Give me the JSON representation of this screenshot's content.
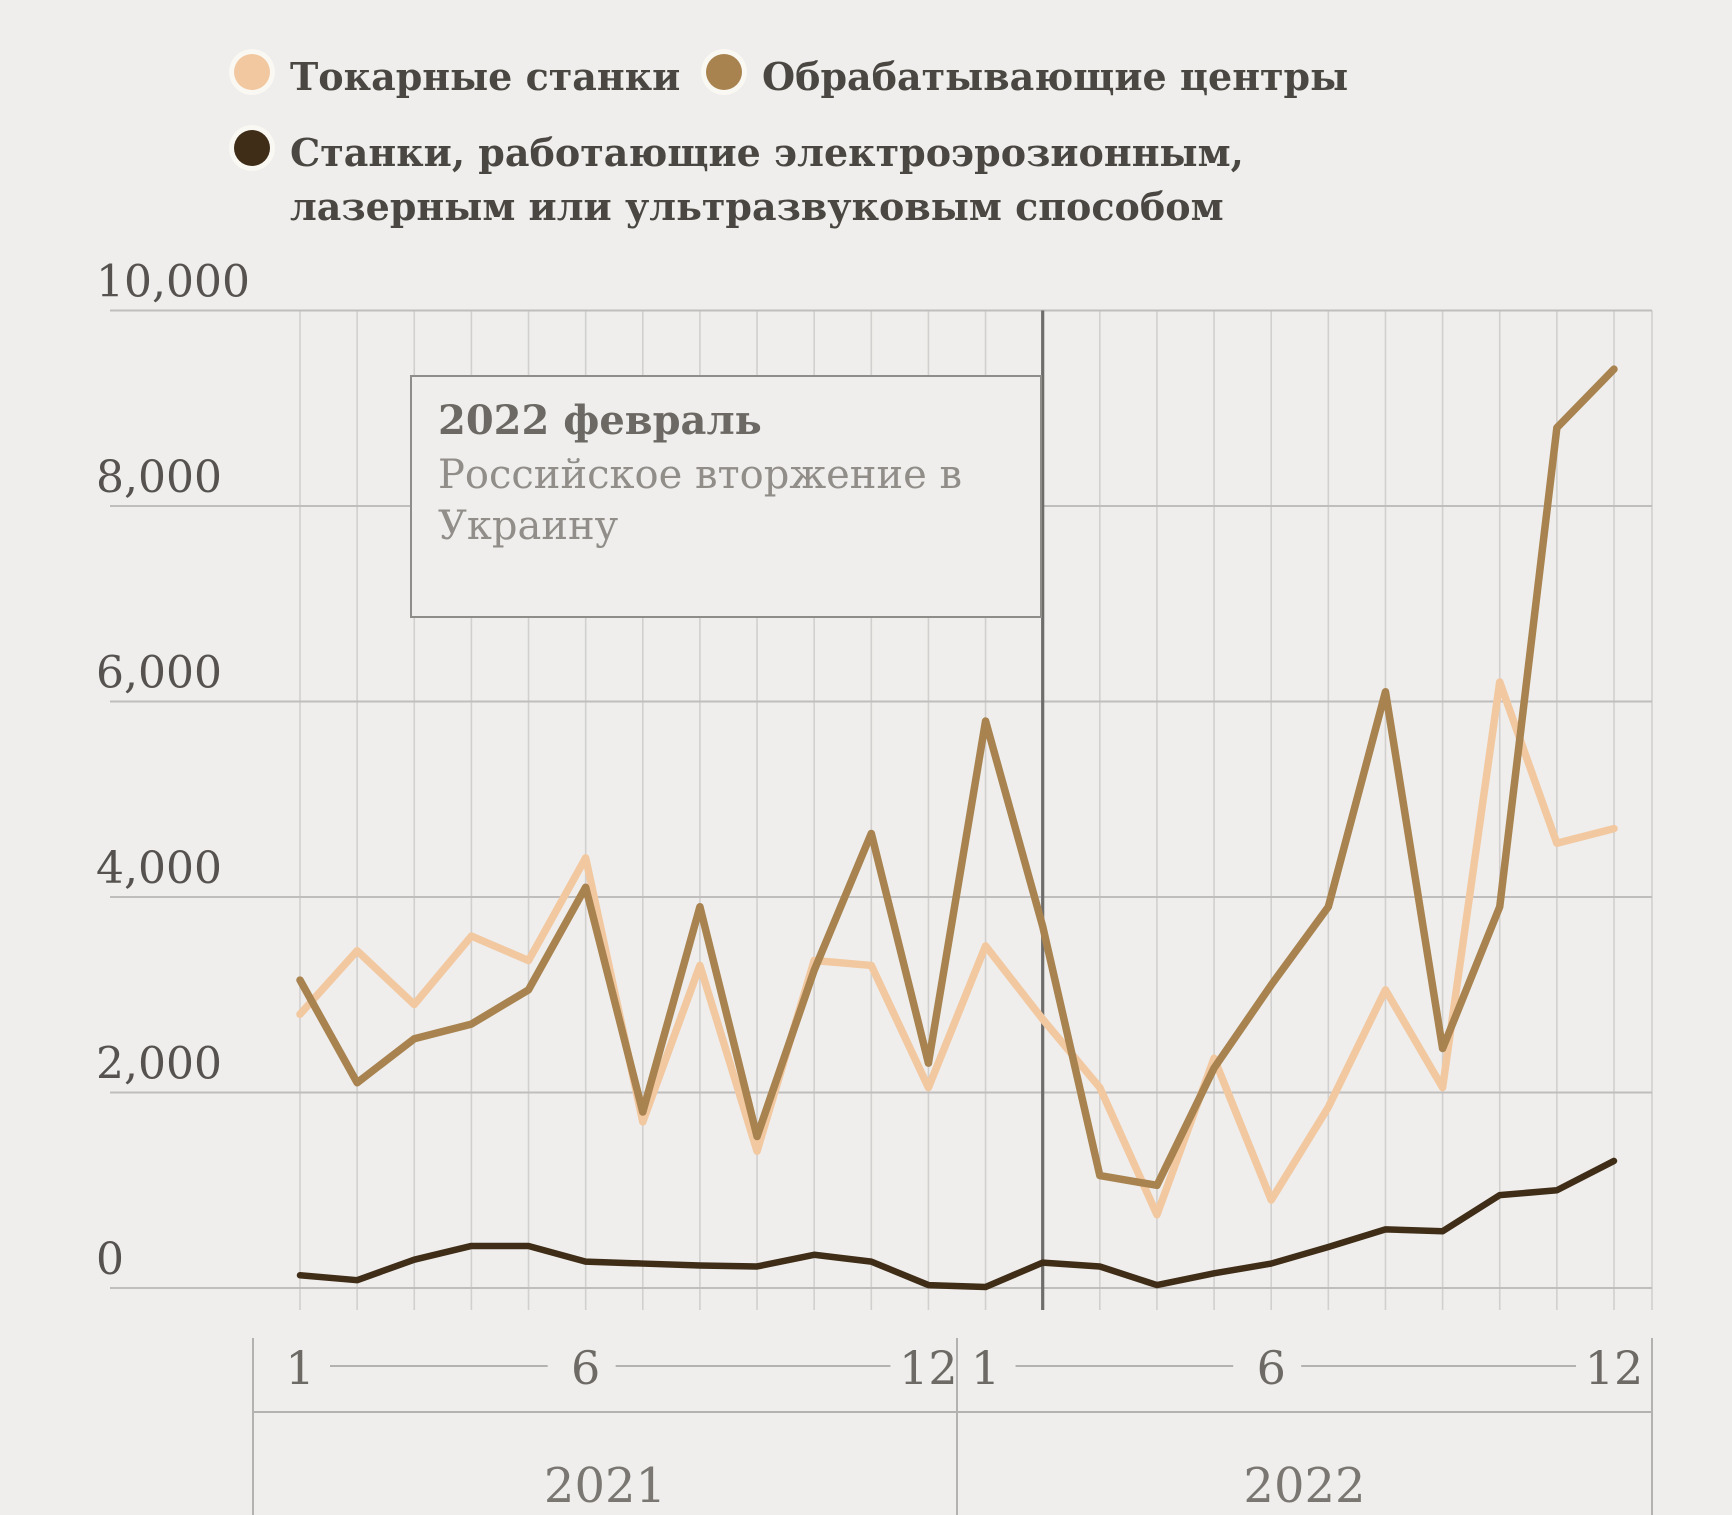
{
  "legend": {
    "items": [
      {
        "label": "Токарные станки",
        "color": "#f2c8a0"
      },
      {
        "label": "Обрабатывающие центры",
        "color": "#a8834f"
      },
      {
        "label": "Станки, работающие электроэрозионным, лазерным или ультразвуковым способом",
        "color": "#3f2d18"
      }
    ]
  },
  "annotation": {
    "title": "2022 февраль",
    "text": "Российское вторжение в Украину"
  },
  "chart_data": {
    "type": "line",
    "title": "",
    "xlabel": "",
    "ylabel": "",
    "ylim": [
      0,
      10000
    ],
    "yticks": [
      0,
      2000,
      4000,
      6000,
      8000,
      10000
    ],
    "grid": "both",
    "legend_position": "top-left",
    "x_months": [
      1,
      2,
      3,
      4,
      5,
      6,
      7,
      8,
      9,
      10,
      11,
      12,
      1,
      2,
      3,
      4,
      5,
      6,
      7,
      8,
      9,
      10,
      11,
      12
    ],
    "x_tick_months": [
      1,
      6,
      12
    ],
    "year_groups": [
      {
        "label": "2021",
        "months": 12
      },
      {
        "label": "2022",
        "months": 12
      }
    ],
    "event_line": {
      "month_index": 13,
      "year": "2022",
      "note_title": "2022 февраль",
      "note_text": "Российское вторжение в Украину"
    },
    "series": [
      {
        "name": "Токарные станки",
        "color": "#f2c8a0",
        "values": [
          2800,
          3450,
          2900,
          3600,
          3350,
          4400,
          1700,
          3300,
          1400,
          3350,
          3300,
          2050,
          3500,
          2750,
          2050,
          750,
          2350,
          900,
          1850,
          3050,
          2050,
          6200,
          4550,
          4700
        ]
      },
      {
        "name": "Обрабатывающие центры",
        "color": "#a8834f",
        "values": [
          3150,
          2100,
          2550,
          2700,
          3050,
          4100,
          1800,
          3900,
          1550,
          3250,
          4650,
          2300,
          5800,
          3700,
          1150,
          1050,
          2250,
          3100,
          3900,
          6100,
          2450,
          3900,
          8800,
          9400
        ]
      },
      {
        "name": "Станки, работающие электроэрозионным, лазерным или ультразвуковым способом",
        "color": "#3f2d18",
        "values": [
          130,
          80,
          290,
          430,
          430,
          270,
          250,
          230,
          220,
          340,
          270,
          30,
          10,
          260,
          220,
          30,
          150,
          250,
          420,
          600,
          580,
          950,
          1000,
          1300
        ]
      }
    ]
  },
  "colors": {
    "background": "#efeeec",
    "grid_h": "#bfbebc",
    "grid_v": "#d1d0ce",
    "event_line": "#6f6d6b",
    "y_text": "#55524f",
    "x_text": "#6d6a66",
    "year_text": "#7a7772",
    "axis_rule": "#b3b2b0"
  }
}
